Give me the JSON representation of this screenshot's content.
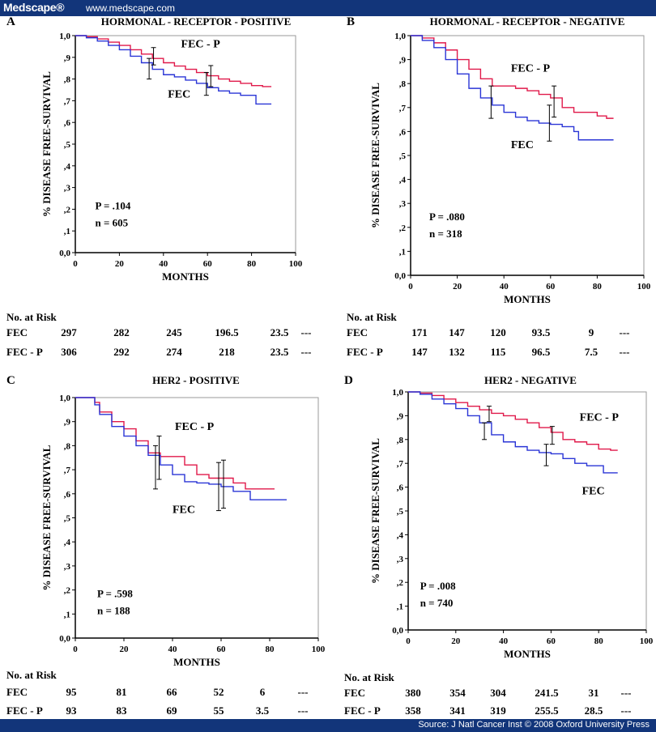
{
  "header": {
    "logo": "Medscape®",
    "url": "www.medscape.com"
  },
  "footer": {
    "source": "Source: J Natl Cancer Inst © 2008 Oxford University Press"
  },
  "colors": {
    "fec": "#2a35d6",
    "fecp": "#e0194a",
    "bar": "#12357a"
  },
  "chart_data": [
    {
      "type": "line",
      "letter": "A",
      "title": "HORMONAL - RECEPTOR - POSITIVE",
      "xlabel": "MONTHS",
      "ylabel": "% DISEASE FREE-SURVIVAL",
      "xlim": [
        0,
        100
      ],
      "ylim": [
        0,
        1
      ],
      "xticks": [
        "0",
        "20",
        "40",
        "60",
        "80",
        "100"
      ],
      "yticks": [
        "0,0",
        ",1",
        ",2",
        ",3",
        ",4",
        ",5",
        ",6",
        ",7",
        ",8",
        ",9",
        "1,0"
      ],
      "series": [
        {
          "name": "FEC - P",
          "color": "#e0194a",
          "x": [
            0,
            5,
            10,
            15,
            20,
            25,
            30,
            35,
            40,
            45,
            50,
            55,
            60,
            65,
            70,
            75,
            80,
            85,
            89
          ],
          "y": [
            1.0,
            0.995,
            0.985,
            0.97,
            0.955,
            0.935,
            0.915,
            0.895,
            0.875,
            0.86,
            0.845,
            0.83,
            0.815,
            0.8,
            0.79,
            0.78,
            0.77,
            0.765,
            0.765
          ]
        },
        {
          "name": "FEC",
          "color": "#2a35d6",
          "x": [
            0,
            5,
            10,
            15,
            20,
            25,
            30,
            35,
            40,
            45,
            50,
            55,
            60,
            65,
            70,
            75,
            80,
            82,
            85,
            89
          ],
          "y": [
            1.0,
            0.99,
            0.975,
            0.955,
            0.935,
            0.905,
            0.875,
            0.845,
            0.82,
            0.81,
            0.795,
            0.78,
            0.76,
            0.745,
            0.735,
            0.725,
            0.725,
            0.685,
            0.685,
            0.685
          ]
        }
      ],
      "error_bars": [
        {
          "x": 33.5,
          "low": 0.8,
          "high": 0.895
        },
        {
          "x": 35.5,
          "low": 0.865,
          "high": 0.945
        },
        {
          "x": 59.5,
          "low": 0.725,
          "high": 0.83
        },
        {
          "x": 61.5,
          "low": 0.765,
          "high": 0.862
        }
      ],
      "series_labels": [
        {
          "text": "FEC - P",
          "x": 48,
          "y": 0.945
        },
        {
          "text": "FEC",
          "x": 42,
          "y": 0.715
        }
      ],
      "p_value": "P = .104",
      "n_value": "n = 605",
      "stats_at": {
        "x": 9,
        "y": 0.2
      },
      "risk": {
        "header": "No. at Risk",
        "rows": [
          {
            "label": "FEC",
            "values": [
              "297",
              "282",
              "245",
              "196.5",
              "23.5",
              "---"
            ]
          },
          {
            "label": "FEC - P",
            "values": [
              "306",
              "292",
              "274",
              "218",
              "23.5",
              "---"
            ]
          }
        ]
      }
    },
    {
      "type": "line",
      "letter": "B",
      "title": "HORMONAL - RECEPTOR - NEGATIVE",
      "xlabel": "MONTHS",
      "ylabel": "% DISEASE FREE-SURVIVAL",
      "xlim": [
        0,
        100
      ],
      "ylim": [
        0,
        1
      ],
      "xticks": [
        "0",
        "20",
        "40",
        "60",
        "80",
        "100"
      ],
      "yticks": [
        "0,0",
        ",1",
        ",2",
        ",3",
        ",4",
        ",5",
        ",6",
        ",7",
        ",8",
        ",9",
        "1,0"
      ],
      "series": [
        {
          "name": "FEC - P",
          "color": "#e0194a",
          "x": [
            0,
            5,
            10,
            15,
            20,
            25,
            30,
            35,
            40,
            45,
            50,
            55,
            60,
            65,
            70,
            75,
            80,
            84,
            87
          ],
          "y": [
            1.0,
            0.99,
            0.97,
            0.94,
            0.9,
            0.86,
            0.82,
            0.79,
            0.79,
            0.78,
            0.77,
            0.755,
            0.74,
            0.7,
            0.68,
            0.68,
            0.665,
            0.655,
            0.655
          ]
        },
        {
          "name": "FEC",
          "color": "#2a35d6",
          "x": [
            0,
            5,
            10,
            15,
            20,
            25,
            30,
            35,
            40,
            45,
            50,
            55,
            60,
            65,
            70,
            72,
            75,
            80,
            87
          ],
          "y": [
            1.0,
            0.98,
            0.95,
            0.9,
            0.84,
            0.78,
            0.74,
            0.71,
            0.68,
            0.66,
            0.645,
            0.635,
            0.63,
            0.62,
            0.6,
            0.565,
            0.565,
            0.565,
            0.565
          ]
        }
      ],
      "error_bars": [
        {
          "x": 34.5,
          "low": 0.655,
          "high": 0.79
        },
        {
          "x": 59.5,
          "low": 0.56,
          "high": 0.71
        },
        {
          "x": 61.5,
          "low": 0.66,
          "high": 0.79
        }
      ],
      "series_labels": [
        {
          "text": "FEC - P",
          "x": 43,
          "y": 0.85
        },
        {
          "text": "FEC",
          "x": 43,
          "y": 0.53
        }
      ],
      "p_value": "P = .080",
      "n_value": "n = 318",
      "stats_at": {
        "x": 8,
        "y": 0.23
      },
      "risk": {
        "header": "No. at Risk",
        "rows": [
          {
            "label": "FEC",
            "values": [
              "171",
              "147",
              "120",
              "93.5",
              "9",
              "---"
            ]
          },
          {
            "label": "FEC - P",
            "values": [
              "147",
              "132",
              "115",
              "96.5",
              "7.5",
              "---"
            ]
          }
        ]
      }
    },
    {
      "type": "line",
      "letter": "C",
      "title": "HER2 - POSITIVE",
      "xlabel": "MONTHS",
      "ylabel": "% DISEASE FREE-SURVIVAL",
      "xlim": [
        0,
        100
      ],
      "ylim": [
        0,
        1
      ],
      "xticks": [
        "0",
        "20",
        "40",
        "60",
        "80",
        "100"
      ],
      "yticks": [
        "0,0",
        ",1",
        ",2",
        ",3",
        ",4",
        ",5",
        ",6",
        ",7",
        ",8",
        ",9",
        "1,0"
      ],
      "series": [
        {
          "name": "FEC - P",
          "color": "#e0194a",
          "x": [
            0,
            6,
            8,
            10,
            15,
            20,
            25,
            30,
            35,
            40,
            45,
            50,
            55,
            60,
            65,
            70,
            75,
            80,
            82
          ],
          "y": [
            1.0,
            1.0,
            0.98,
            0.94,
            0.9,
            0.87,
            0.82,
            0.77,
            0.755,
            0.755,
            0.72,
            0.68,
            0.665,
            0.665,
            0.645,
            0.62,
            0.62,
            0.62,
            0.62
          ]
        },
        {
          "name": "FEC",
          "color": "#2a35d6",
          "x": [
            0,
            6,
            8,
            10,
            15,
            20,
            25,
            30,
            35,
            40,
            45,
            50,
            55,
            60,
            65,
            70,
            72,
            80,
            87
          ],
          "y": [
            1.0,
            1.0,
            0.97,
            0.93,
            0.88,
            0.84,
            0.8,
            0.76,
            0.72,
            0.68,
            0.65,
            0.645,
            0.64,
            0.63,
            0.61,
            0.61,
            0.575,
            0.575,
            0.575
          ]
        }
      ],
      "error_bars": [
        {
          "x": 33,
          "low": 0.62,
          "high": 0.8
        },
        {
          "x": 34.5,
          "low": 0.66,
          "high": 0.84
        },
        {
          "x": 59,
          "low": 0.53,
          "high": 0.73
        },
        {
          "x": 61,
          "low": 0.54,
          "high": 0.74
        }
      ],
      "series_labels": [
        {
          "text": "FEC - P",
          "x": 41,
          "y": 0.865
        },
        {
          "text": "FEC",
          "x": 40,
          "y": 0.52
        }
      ],
      "p_value": "P = .598",
      "n_value": "n = 188",
      "stats_at": {
        "x": 9,
        "y": 0.17
      },
      "risk": {
        "header": "No. at Risk",
        "rows": [
          {
            "label": "FEC",
            "values": [
              "95",
              "81",
              "66",
              "52",
              "6",
              "---"
            ]
          },
          {
            "label": "FEC - P",
            "values": [
              "93",
              "83",
              "69",
              "55",
              "3.5",
              "---"
            ]
          }
        ]
      }
    },
    {
      "type": "line",
      "letter": "D",
      "title": "HER2 - NEGATIVE",
      "xlabel": "MONTHS",
      "ylabel": "% DISEASE FREE-SURVIVAL",
      "xlim": [
        0,
        100
      ],
      "ylim": [
        0,
        1
      ],
      "xticks": [
        "0",
        "20",
        "40",
        "60",
        "80",
        "100"
      ],
      "yticks": [
        "0,0",
        ",1",
        ",2",
        ",3",
        ",4",
        ",5",
        ",6",
        ",7",
        ",8",
        ",9",
        "1,0"
      ],
      "series": [
        {
          "name": "FEC - P",
          "color": "#e0194a",
          "x": [
            0,
            5,
            10,
            15,
            20,
            25,
            30,
            35,
            40,
            45,
            50,
            55,
            60,
            65,
            70,
            75,
            80,
            85,
            88
          ],
          "y": [
            1.0,
            0.995,
            0.985,
            0.97,
            0.955,
            0.94,
            0.925,
            0.91,
            0.9,
            0.885,
            0.87,
            0.85,
            0.83,
            0.8,
            0.79,
            0.78,
            0.76,
            0.755,
            0.755
          ]
        },
        {
          "name": "FEC",
          "color": "#2a35d6",
          "x": [
            0,
            5,
            10,
            15,
            20,
            25,
            30,
            35,
            40,
            45,
            50,
            55,
            60,
            65,
            70,
            75,
            80,
            82,
            88
          ],
          "y": [
            1.0,
            0.99,
            0.97,
            0.95,
            0.93,
            0.9,
            0.87,
            0.82,
            0.79,
            0.77,
            0.755,
            0.745,
            0.74,
            0.72,
            0.7,
            0.69,
            0.69,
            0.66,
            0.66
          ]
        }
      ],
      "error_bars": [
        {
          "x": 32,
          "low": 0.8,
          "high": 0.87
        },
        {
          "x": 34,
          "low": 0.875,
          "high": 0.94
        },
        {
          "x": 58,
          "low": 0.69,
          "high": 0.78
        },
        {
          "x": 60.5,
          "low": 0.78,
          "high": 0.855
        }
      ],
      "series_labels": [
        {
          "text": "FEC - P",
          "x": 72,
          "y": 0.88
        },
        {
          "text": "FEC",
          "x": 73,
          "y": 0.57
        }
      ],
      "p_value": "P = .008",
      "n_value": "n = 740",
      "stats_at": {
        "x": 5,
        "y": 0.17
      },
      "risk": {
        "header": "No. at Risk",
        "rows": [
          {
            "label": "FEC",
            "values": [
              "380",
              "354",
              "304",
              "241.5",
              "31",
              "---"
            ]
          },
          {
            "label": "FEC - P",
            "values": [
              "358",
              "341",
              "319",
              "255.5",
              "28.5",
              "---"
            ]
          }
        ]
      }
    }
  ]
}
